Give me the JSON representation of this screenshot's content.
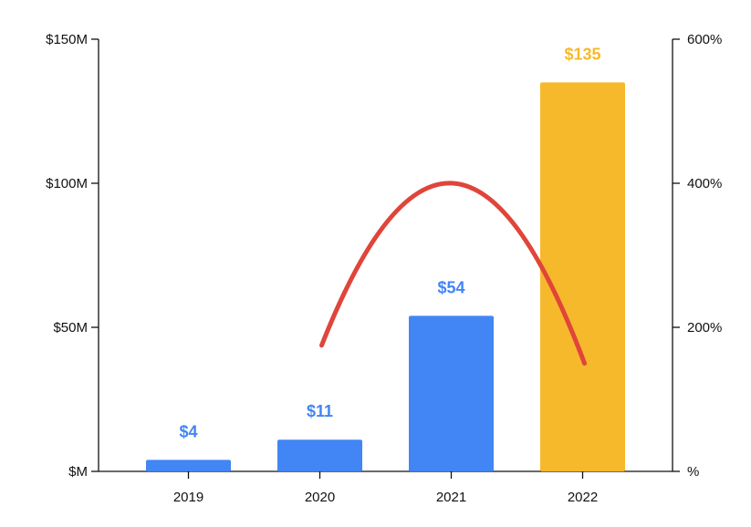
{
  "chart_data": {
    "type": "bar",
    "categories": [
      "2019",
      "2020",
      "2021",
      "2022"
    ],
    "series": [
      {
        "type": "bar",
        "axis": "left",
        "values": [
          4,
          11,
          54,
          135
        ],
        "labels": [
          "$4",
          "$11",
          "$54",
          "$135"
        ],
        "colors": [
          "#4285F4",
          "#4285F4",
          "#4285F4",
          "#F6B92B"
        ]
      },
      {
        "type": "line",
        "axis": "right",
        "smooth": true,
        "values": [
          null,
          175,
          400,
          150
        ],
        "color": "#E0453A"
      }
    ],
    "y_left": {
      "min": 0,
      "max": 150,
      "ticks": [
        0,
        50,
        100,
        150
      ],
      "tick_labels": [
        "$M",
        "$50M",
        "$100M",
        "$150M"
      ]
    },
    "y_right": {
      "min": 0,
      "max": 600,
      "ticks": [
        0,
        200,
        400,
        600
      ],
      "tick_labels": [
        "%",
        "200%",
        "400%",
        "600%"
      ]
    },
    "title": "",
    "xlabel": "",
    "ylabel": "",
    "grid": false,
    "legend": "none"
  }
}
